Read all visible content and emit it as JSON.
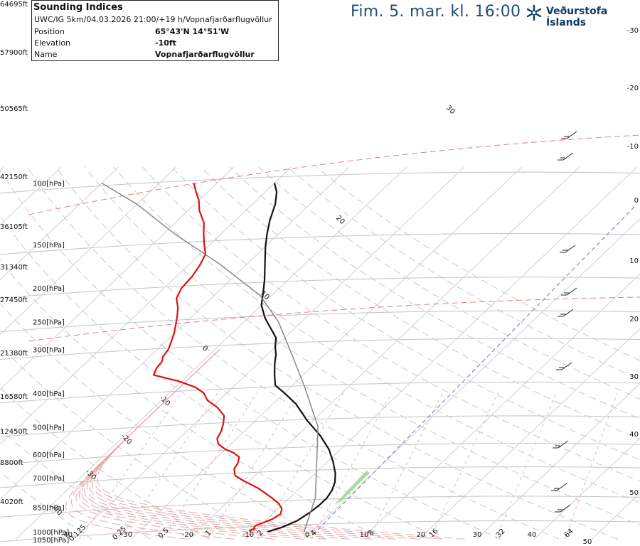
{
  "header": {
    "valid_time": "Fim. 5. mar. kl. 16:00",
    "logo_text": "Veðurstofa Íslands",
    "logo_icon": "vedurstofa-snowflake-icon"
  },
  "infobox": {
    "title": "Sounding Indices",
    "run": "UWC/IG 5km/04.03.2026 21:00/+19 h/Vopnafjarðarflugvöllur",
    "rows": [
      {
        "key": "Position",
        "value": "65°43'N 14°51'W"
      },
      {
        "key": "Elevation",
        "value": "-10ft"
      },
      {
        "key": "Name",
        "value": "Vopnafjarðarflugvöllur"
      }
    ]
  },
  "altitude_labels": [
    "64695ft",
    "57900ft",
    "50565ft",
    "42150ft",
    "36105ft",
    "31340ft",
    "27450ft",
    "21380ft",
    "16580ft",
    "12450ft",
    "8800ft",
    "4020ft"
  ],
  "chart_data": {
    "type": "line",
    "title": "",
    "xlabel": "",
    "ylabel": "",
    "xlim": [
      -40,
      40
    ],
    "ylim": [
      1050,
      100
    ],
    "yscale": "log",
    "pressure_labels": [
      {
        "p": 100,
        "label": "100[hPa]"
      },
      {
        "p": 150,
        "label": "150[hPa]"
      },
      {
        "p": 200,
        "label": "200[hPa]"
      },
      {
        "p": 250,
        "label": "250[hPa]"
      },
      {
        "p": 300,
        "label": "300[hPa]"
      },
      {
        "p": 400,
        "label": "400[hPa]"
      },
      {
        "p": 500,
        "label": "500[hPa]"
      },
      {
        "p": 600,
        "label": "600[hPa]"
      },
      {
        "p": 700,
        "label": "700[hPa]"
      },
      {
        "p": 850,
        "label": "850[hPa]"
      },
      {
        "p": 1000,
        "label": "1000[hPa]"
      },
      {
        "p": 1050,
        "label": "1050[hPa]"
      }
    ],
    "right_labels": [
      "-30",
      "-20",
      "-10",
      "0",
      "10",
      "20",
      "30",
      "40",
      "50"
    ],
    "bottom_temp_labels": [
      "-40",
      "-30",
      "-20",
      "-10",
      "0",
      "10",
      "20",
      "30",
      "40",
      "50"
    ],
    "mixing_ratio_labels": [
      "0.125",
      "0.25",
      "0.5",
      "1",
      "2",
      "4",
      "8",
      "16",
      "32",
      "64"
    ],
    "isotherm_labels": [
      "30",
      "20",
      "10",
      "0",
      "-10",
      "-20",
      "-30",
      "-40"
    ],
    "series": [
      {
        "name": "",
        "color": "#111111",
        "points": [
          [
            -7.6,
            1000
          ],
          [
            -5.9,
            970
          ],
          [
            -4.5,
            930
          ],
          [
            -3.8,
            880
          ],
          [
            -3.5,
            840
          ],
          [
            -3.5,
            800
          ],
          [
            -4,
            760
          ],
          [
            -5,
            720
          ],
          [
            -6.5,
            680
          ],
          [
            -9,
            630
          ],
          [
            -12,
            580
          ],
          [
            -16,
            530
          ],
          [
            -21,
            480
          ],
          [
            -26,
            430
          ],
          [
            -30,
            400
          ],
          [
            -33,
            380
          ],
          [
            -35,
            355
          ],
          [
            -37,
            330
          ],
          [
            -38.5,
            310
          ],
          [
            -40,
            295
          ],
          [
            -41.5,
            278
          ],
          [
            -44,
            262
          ],
          [
            -47,
            244
          ],
          [
            -50,
            224
          ],
          [
            -52,
            206
          ],
          [
            -54,
            190
          ],
          [
            -57,
            170
          ],
          [
            -60,
            152
          ],
          [
            -62,
            140
          ],
          [
            -64,
            128
          ],
          [
            -66,
            115
          ],
          [
            -68,
            106
          ],
          [
            -70,
            100
          ]
        ]
      },
      {
        "name": "",
        "color": "#dd1111",
        "points": [
          [
            -10.5,
            1000
          ],
          [
            -11,
            990
          ],
          [
            -10.4,
            980
          ],
          [
            -10.8,
            970
          ],
          [
            -10.8,
            960
          ],
          [
            -10.4,
            950
          ],
          [
            -9.1,
            920
          ],
          [
            -8.6,
            890
          ],
          [
            -9.3,
            860
          ],
          [
            -10.8,
            830
          ],
          [
            -13,
            800
          ],
          [
            -17.2,
            750
          ],
          [
            -21,
            715
          ],
          [
            -23.5,
            690
          ],
          [
            -24.9,
            660
          ],
          [
            -25.3,
            635
          ],
          [
            -26.2,
            610
          ],
          [
            -28,
            593
          ],
          [
            -30,
            580
          ],
          [
            -32.2,
            560
          ],
          [
            -33.4,
            540
          ],
          [
            -34,
            515
          ],
          [
            -35,
            490
          ],
          [
            -36.3,
            465
          ],
          [
            -39,
            440
          ],
          [
            -42,
            420
          ],
          [
            -44,
            400
          ],
          [
            -46.5,
            385
          ],
          [
            -50.5,
            370
          ],
          [
            -56,
            355
          ],
          [
            -56.7,
            340
          ],
          [
            -57,
            325
          ],
          [
            -57.7,
            315
          ],
          [
            -58.1,
            300
          ],
          [
            -59,
            285
          ],
          [
            -60,
            270
          ],
          [
            -61.3,
            255
          ],
          [
            -62.5,
            242
          ],
          [
            -64,
            228
          ],
          [
            -66,
            214
          ],
          [
            -67,
            200
          ],
          [
            -67.3,
            185
          ],
          [
            -68,
            172
          ],
          [
            -69,
            160
          ],
          [
            -71,
            150
          ],
          [
            -73,
            140
          ],
          [
            -75,
            130
          ],
          [
            -78,
            120
          ],
          [
            -80,
            112
          ],
          [
            -82,
            106
          ],
          [
            -84,
            100
          ]
        ]
      },
      {
        "name": "",
        "color": "#888888",
        "points": [
          [
            -1.3,
            1000
          ],
          [
            -5.5,
            800
          ],
          [
            -11,
            650
          ],
          [
            -18,
            500
          ],
          [
            -28,
            380
          ],
          [
            -37,
            300
          ],
          [
            -44,
            250
          ],
          [
            -52,
            210
          ],
          [
            -65,
            170
          ],
          [
            -78,
            140
          ],
          [
            -90,
            115
          ],
          [
            -100,
            100
          ]
        ]
      }
    ]
  }
}
